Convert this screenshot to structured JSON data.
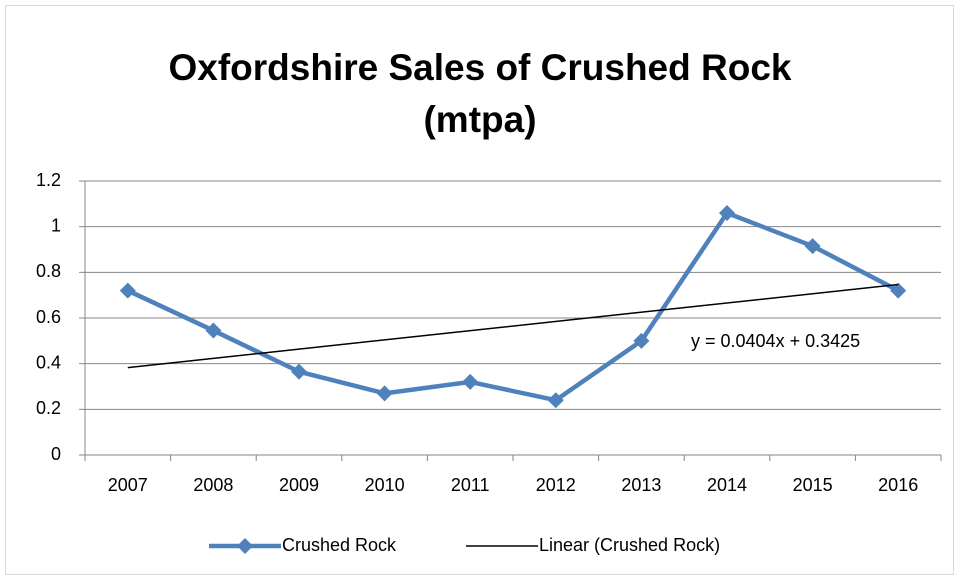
{
  "chart_data": {
    "type": "line",
    "title": "Oxfordshire Sales of Crushed Rock (mtpa)",
    "categories": [
      "2007",
      "2008",
      "2009",
      "2010",
      "2011",
      "2012",
      "2013",
      "2014",
      "2015",
      "2016"
    ],
    "series": [
      {
        "name": "Crushed Rock",
        "color": "#4f81bd",
        "values": [
          0.72,
          0.545,
          0.365,
          0.27,
          0.32,
          0.24,
          0.5,
          1.06,
          0.915,
          0.72
        ]
      }
    ],
    "trendline": {
      "name": "Linear (Crushed Rock)",
      "color": "#000000",
      "slope": 0.0404,
      "intercept": 0.3425,
      "label": "y = 0.0404x + 0.3425"
    },
    "ylim": [
      0,
      1.2
    ],
    "yticks": [
      0,
      0.2,
      0.4,
      0.6,
      0.8,
      1,
      1.2
    ],
    "grid": true,
    "legend": "bottom"
  }
}
